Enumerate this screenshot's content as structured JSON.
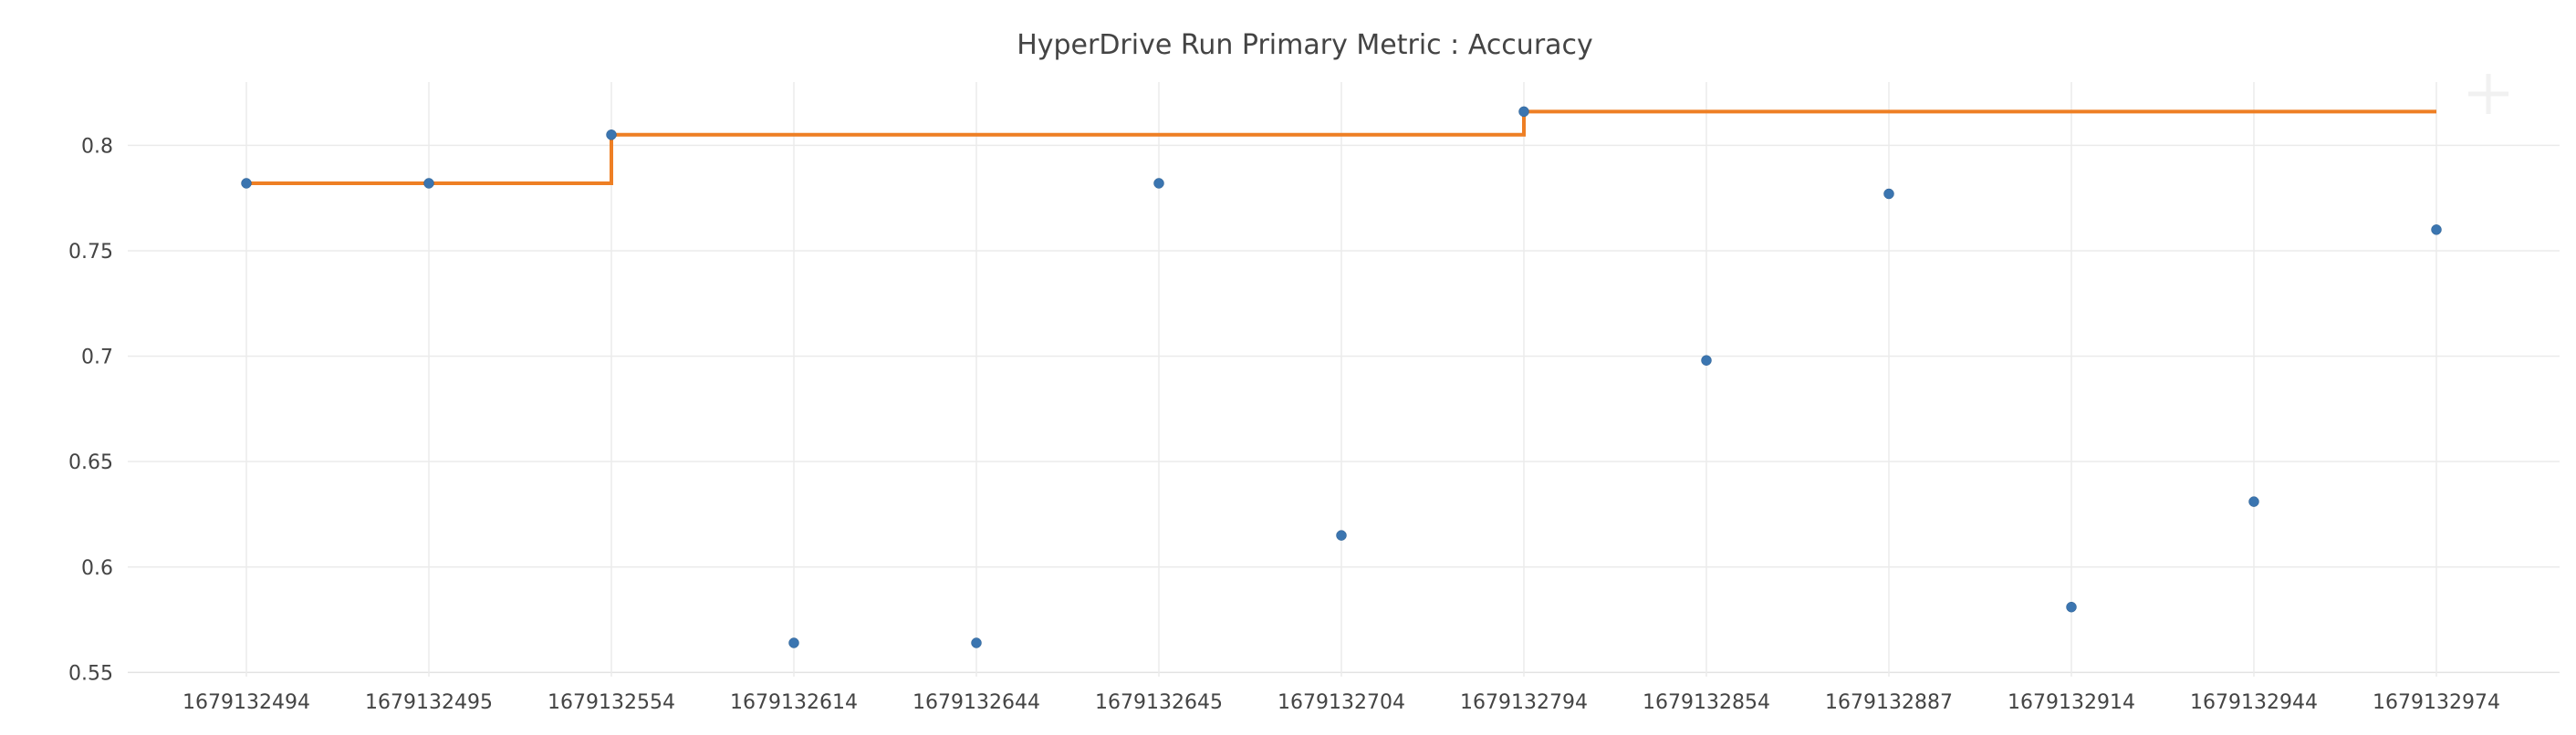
{
  "chart_data": {
    "type": "scatter",
    "title": "HyperDrive Run Primary Metric : Accuracy",
    "xlabel": "",
    "ylabel": "",
    "categories": [
      "1679132494",
      "1679132495",
      "1679132554",
      "1679132614",
      "1679132644",
      "1679132645",
      "1679132704",
      "1679132794",
      "1679132854",
      "1679132887",
      "1679132914",
      "1679132944",
      "1679132974"
    ],
    "y_ticks": [
      0.55,
      0.6,
      0.65,
      0.7,
      0.75,
      0.8
    ],
    "y_tick_labels": [
      "0.55",
      "0.6",
      "0.65",
      "0.7",
      "0.75",
      "0.8"
    ],
    "ylim": [
      0.548,
      0.83
    ],
    "grid": true,
    "series": [
      {
        "mode": "markers",
        "color": "#3b75b0",
        "values": [
          0.782,
          0.782,
          0.805,
          0.564,
          0.564,
          0.782,
          0.615,
          0.816,
          0.698,
          0.777,
          0.581,
          0.631,
          0.76
        ]
      },
      {
        "mode": "lines-step",
        "color": "#ee7f24",
        "values": [
          0.782,
          0.782,
          0.805,
          0.805,
          0.805,
          0.805,
          0.805,
          0.816,
          0.816,
          0.816,
          0.816,
          0.816,
          0.816
        ]
      }
    ]
  },
  "icons": {
    "corner_icon": "plus-icon"
  }
}
